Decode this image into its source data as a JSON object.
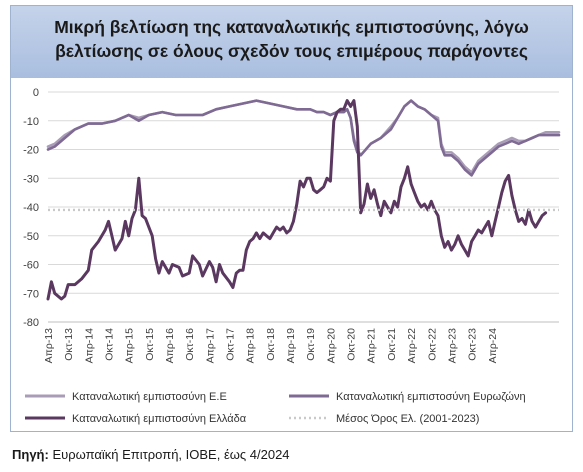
{
  "title": "Μικρή βελτίωση της καταναλωτικής εμπιστοσύνης, λόγω βελτίωσης σε όλους σχεδόν τους επιμέρους παράγοντες",
  "source_label": "Πηγή:",
  "source_text": " Ευρωπαϊκή Επιτροπή, ΙΟΒΕ, έως 4/2024",
  "colors": {
    "eu": "#a99cb6",
    "ez": "#7f6a93",
    "gr": "#5a3860",
    "avg": "#c9c9c9",
    "grid": "#d9d9d9",
    "axis": "#bfbfbf"
  },
  "chart_data": {
    "type": "line",
    "x_tick_labels": [
      "Απρ-13",
      "Οκτ-13",
      "Απρ-14",
      "Οκτ-14",
      "Απρ-15",
      "Οκτ-15",
      "Απρ-16",
      "Οκτ-16",
      "Απρ-17",
      "Οκτ-17",
      "Απρ-18",
      "Οκτ-18",
      "Απρ-19",
      "Οκτ-19",
      "Απρ-20",
      "Οκτ-20",
      "Απρ-21",
      "Οκτ-21",
      "Απρ-22",
      "Οκτ-22",
      "Απρ-23",
      "Οκτ-23",
      "Απρ-24"
    ],
    "ylim": [
      -80,
      0
    ],
    "y_ticks": [
      0,
      -10,
      -20,
      -30,
      -40,
      -50,
      -60,
      -70,
      -80
    ],
    "grid": "horizontal",
    "legend_position": "bottom",
    "series": [
      {
        "name": "Καταναλωτική εμπιστοσύνη Ε.Ε",
        "color_key": "eu",
        "style": "solid",
        "values": [
          {
            "x": 0,
            "y": -19
          },
          {
            "x": 2,
            "y": -18
          },
          {
            "x": 5,
            "y": -15
          },
          {
            "x": 8,
            "y": -13
          },
          {
            "x": 12,
            "y": -11
          },
          {
            "x": 16,
            "y": -11
          },
          {
            "x": 20,
            "y": -10
          },
          {
            "x": 24,
            "y": -8
          },
          {
            "x": 27,
            "y": -9
          },
          {
            "x": 30,
            "y": -8
          },
          {
            "x": 34,
            "y": -7
          },
          {
            "x": 38,
            "y": -8
          },
          {
            "x": 42,
            "y": -8
          },
          {
            "x": 46,
            "y": -8
          },
          {
            "x": 50,
            "y": -6
          },
          {
            "x": 54,
            "y": -5
          },
          {
            "x": 58,
            "y": -4
          },
          {
            "x": 62,
            "y": -3
          },
          {
            "x": 66,
            "y": -4
          },
          {
            "x": 70,
            "y": -5
          },
          {
            "x": 74,
            "y": -6
          },
          {
            "x": 78,
            "y": -6
          },
          {
            "x": 80,
            "y": -7
          },
          {
            "x": 82,
            "y": -7
          },
          {
            "x": 84,
            "y": -8
          },
          {
            "x": 86,
            "y": -7
          },
          {
            "x": 88,
            "y": -7
          },
          {
            "x": 89,
            "y": -6
          },
          {
            "x": 90,
            "y": -9
          },
          {
            "x": 91,
            "y": -16
          },
          {
            "x": 92,
            "y": -20
          },
          {
            "x": 93,
            "y": -22
          },
          {
            "x": 96,
            "y": -18
          },
          {
            "x": 99,
            "y": -16
          },
          {
            "x": 102,
            "y": -12
          },
          {
            "x": 104,
            "y": -9
          },
          {
            "x": 106,
            "y": -5
          },
          {
            "x": 108,
            "y": -3
          },
          {
            "x": 110,
            "y": -5
          },
          {
            "x": 112,
            "y": -6
          },
          {
            "x": 114,
            "y": -8
          },
          {
            "x": 116,
            "y": -9
          },
          {
            "x": 117,
            "y": -18
          },
          {
            "x": 118,
            "y": -21
          },
          {
            "x": 120,
            "y": -21
          },
          {
            "x": 122,
            "y": -23
          },
          {
            "x": 124,
            "y": -26
          },
          {
            "x": 126,
            "y": -28
          },
          {
            "x": 128,
            "y": -24
          },
          {
            "x": 130,
            "y": -22
          },
          {
            "x": 132,
            "y": -20
          },
          {
            "x": 134,
            "y": -18
          },
          {
            "x": 136,
            "y": -17
          },
          {
            "x": 138,
            "y": -16
          },
          {
            "x": 140,
            "y": -17
          },
          {
            "x": 142,
            "y": -17
          },
          {
            "x": 144,
            "y": -16
          },
          {
            "x": 146,
            "y": -15
          },
          {
            "x": 148,
            "y": -14
          },
          {
            "x": 150,
            "y": -14
          },
          {
            "x": 152,
            "y": -14
          }
        ]
      },
      {
        "name": "Καταναλωτική εμπιστοσύνη Ευρωζώνη",
        "color_key": "ez",
        "style": "solid",
        "values": [
          {
            "x": 0,
            "y": -20
          },
          {
            "x": 2,
            "y": -19
          },
          {
            "x": 5,
            "y": -16
          },
          {
            "x": 8,
            "y": -13
          },
          {
            "x": 12,
            "y": -11
          },
          {
            "x": 16,
            "y": -11
          },
          {
            "x": 20,
            "y": -10
          },
          {
            "x": 24,
            "y": -8
          },
          {
            "x": 27,
            "y": -10
          },
          {
            "x": 30,
            "y": -8
          },
          {
            "x": 34,
            "y": -7
          },
          {
            "x": 38,
            "y": -8
          },
          {
            "x": 42,
            "y": -8
          },
          {
            "x": 46,
            "y": -8
          },
          {
            "x": 50,
            "y": -6
          },
          {
            "x": 54,
            "y": -5
          },
          {
            "x": 58,
            "y": -4
          },
          {
            "x": 62,
            "y": -3
          },
          {
            "x": 66,
            "y": -4
          },
          {
            "x": 70,
            "y": -5
          },
          {
            "x": 74,
            "y": -6
          },
          {
            "x": 78,
            "y": -6
          },
          {
            "x": 80,
            "y": -7
          },
          {
            "x": 82,
            "y": -7
          },
          {
            "x": 84,
            "y": -8
          },
          {
            "x": 86,
            "y": -7
          },
          {
            "x": 88,
            "y": -7
          },
          {
            "x": 89,
            "y": -6
          },
          {
            "x": 90,
            "y": -9
          },
          {
            "x": 91,
            "y": -17
          },
          {
            "x": 92,
            "y": -21
          },
          {
            "x": 93,
            "y": -22
          },
          {
            "x": 96,
            "y": -18
          },
          {
            "x": 99,
            "y": -16
          },
          {
            "x": 102,
            "y": -13
          },
          {
            "x": 104,
            "y": -9
          },
          {
            "x": 106,
            "y": -5
          },
          {
            "x": 108,
            "y": -3
          },
          {
            "x": 110,
            "y": -5
          },
          {
            "x": 112,
            "y": -6
          },
          {
            "x": 114,
            "y": -8
          },
          {
            "x": 116,
            "y": -10
          },
          {
            "x": 117,
            "y": -19
          },
          {
            "x": 118,
            "y": -22
          },
          {
            "x": 120,
            "y": -22
          },
          {
            "x": 122,
            "y": -24
          },
          {
            "x": 124,
            "y": -27
          },
          {
            "x": 126,
            "y": -29
          },
          {
            "x": 128,
            "y": -25
          },
          {
            "x": 130,
            "y": -23
          },
          {
            "x": 132,
            "y": -21
          },
          {
            "x": 134,
            "y": -19
          },
          {
            "x": 136,
            "y": -18
          },
          {
            "x": 138,
            "y": -17
          },
          {
            "x": 140,
            "y": -18
          },
          {
            "x": 142,
            "y": -17
          },
          {
            "x": 144,
            "y": -16
          },
          {
            "x": 146,
            "y": -15
          },
          {
            "x": 148,
            "y": -15
          },
          {
            "x": 150,
            "y": -15
          },
          {
            "x": 152,
            "y": -15
          }
        ]
      },
      {
        "name": "Καταναλωτική εμπιστοσύνη Ελλάδα",
        "color_key": "gr",
        "style": "solid",
        "values": [
          {
            "x": 0,
            "y": -72
          },
          {
            "x": 1,
            "y": -66
          },
          {
            "x": 2,
            "y": -70
          },
          {
            "x": 4,
            "y": -72
          },
          {
            "x": 5,
            "y": -71
          },
          {
            "x": 6,
            "y": -67
          },
          {
            "x": 8,
            "y": -67
          },
          {
            "x": 10,
            "y": -65
          },
          {
            "x": 12,
            "y": -62
          },
          {
            "x": 13,
            "y": -55
          },
          {
            "x": 15,
            "y": -52
          },
          {
            "x": 17,
            "y": -48
          },
          {
            "x": 18,
            "y": -45
          },
          {
            "x": 19,
            "y": -50
          },
          {
            "x": 20,
            "y": -55
          },
          {
            "x": 22,
            "y": -51
          },
          {
            "x": 23,
            "y": -45
          },
          {
            "x": 24,
            "y": -50
          },
          {
            "x": 25,
            "y": -44
          },
          {
            "x": 26,
            "y": -41
          },
          {
            "x": 27,
            "y": -30
          },
          {
            "x": 28,
            "y": -43
          },
          {
            "x": 29,
            "y": -44
          },
          {
            "x": 31,
            "y": -50
          },
          {
            "x": 32,
            "y": -58
          },
          {
            "x": 33,
            "y": -63
          },
          {
            "x": 34,
            "y": -59
          },
          {
            "x": 36,
            "y": -63
          },
          {
            "x": 37,
            "y": -60
          },
          {
            "x": 39,
            "y": -61
          },
          {
            "x": 40,
            "y": -64
          },
          {
            "x": 42,
            "y": -63
          },
          {
            "x": 43,
            "y": -57
          },
          {
            "x": 45,
            "y": -60
          },
          {
            "x": 46,
            "y": -64
          },
          {
            "x": 48,
            "y": -59
          },
          {
            "x": 49,
            "y": -61
          },
          {
            "x": 50,
            "y": -66
          },
          {
            "x": 51,
            "y": -60
          },
          {
            "x": 52,
            "y": -63
          },
          {
            "x": 54,
            "y": -66
          },
          {
            "x": 55,
            "y": -68
          },
          {
            "x": 56,
            "y": -63
          },
          {
            "x": 57,
            "y": -62
          },
          {
            "x": 58,
            "y": -62
          },
          {
            "x": 59,
            "y": -55
          },
          {
            "x": 60,
            "y": -52
          },
          {
            "x": 61,
            "y": -51
          },
          {
            "x": 62,
            "y": -49
          },
          {
            "x": 63,
            "y": -51
          },
          {
            "x": 64,
            "y": -49
          },
          {
            "x": 65,
            "y": -50
          },
          {
            "x": 66,
            "y": -51
          },
          {
            "x": 67,
            "y": -49
          },
          {
            "x": 68,
            "y": -47
          },
          {
            "x": 69,
            "y": -48
          },
          {
            "x": 70,
            "y": -47
          },
          {
            "x": 71,
            "y": -49
          },
          {
            "x": 72,
            "y": -48
          },
          {
            "x": 73,
            "y": -45
          },
          {
            "x": 74,
            "y": -39
          },
          {
            "x": 75,
            "y": -31
          },
          {
            "x": 76,
            "y": -33
          },
          {
            "x": 77,
            "y": -30
          },
          {
            "x": 78,
            "y": -30
          },
          {
            "x": 79,
            "y": -34
          },
          {
            "x": 80,
            "y": -35
          },
          {
            "x": 81,
            "y": -34
          },
          {
            "x": 82,
            "y": -33
          },
          {
            "x": 83,
            "y": -30
          },
          {
            "x": 84,
            "y": -31
          },
          {
            "x": 85,
            "y": -10
          },
          {
            "x": 86,
            "y": -7
          },
          {
            "x": 87,
            "y": -6
          },
          {
            "x": 88,
            "y": -6
          },
          {
            "x": 89,
            "y": -3
          },
          {
            "x": 90,
            "y": -5
          },
          {
            "x": 91,
            "y": -3
          },
          {
            "x": 92,
            "y": -12
          },
          {
            "x": 93,
            "y": -42
          },
          {
            "x": 94,
            "y": -39
          },
          {
            "x": 95,
            "y": -32
          },
          {
            "x": 96,
            "y": -37
          },
          {
            "x": 97,
            "y": -34
          },
          {
            "x": 98,
            "y": -39
          },
          {
            "x": 99,
            "y": -43
          },
          {
            "x": 100,
            "y": -38
          },
          {
            "x": 101,
            "y": -40
          },
          {
            "x": 102,
            "y": -42
          },
          {
            "x": 103,
            "y": -38
          },
          {
            "x": 104,
            "y": -40
          },
          {
            "x": 105,
            "y": -33
          },
          {
            "x": 106,
            "y": -30
          },
          {
            "x": 107,
            "y": -26
          },
          {
            "x": 108,
            "y": -32
          },
          {
            "x": 109,
            "y": -35
          },
          {
            "x": 110,
            "y": -38
          },
          {
            "x": 111,
            "y": -40
          },
          {
            "x": 112,
            "y": -39
          },
          {
            "x": 113,
            "y": -41
          },
          {
            "x": 114,
            "y": -38
          },
          {
            "x": 115,
            "y": -41
          },
          {
            "x": 116,
            "y": -43
          },
          {
            "x": 117,
            "y": -50
          },
          {
            "x": 118,
            "y": -54
          },
          {
            "x": 119,
            "y": -52
          },
          {
            "x": 120,
            "y": -55
          },
          {
            "x": 121,
            "y": -53
          },
          {
            "x": 122,
            "y": -50
          },
          {
            "x": 123,
            "y": -53
          },
          {
            "x": 124,
            "y": -55
          },
          {
            "x": 125,
            "y": -57
          },
          {
            "x": 126,
            "y": -52
          },
          {
            "x": 127,
            "y": -50
          },
          {
            "x": 128,
            "y": -48
          },
          {
            "x": 129,
            "y": -49
          },
          {
            "x": 130,
            "y": -47
          },
          {
            "x": 131,
            "y": -45
          },
          {
            "x": 132,
            "y": -50
          },
          {
            "x": 133,
            "y": -45
          },
          {
            "x": 134,
            "y": -40
          },
          {
            "x": 135,
            "y": -35
          },
          {
            "x": 136,
            "y": -31
          },
          {
            "x": 137,
            "y": -29
          },
          {
            "x": 138,
            "y": -36
          },
          {
            "x": 139,
            "y": -41
          },
          {
            "x": 140,
            "y": -45
          },
          {
            "x": 141,
            "y": -44
          },
          {
            "x": 142,
            "y": -46
          },
          {
            "x": 143,
            "y": -41
          },
          {
            "x": 144,
            "y": -45
          },
          {
            "x": 145,
            "y": -47
          },
          {
            "x": 146,
            "y": -45
          },
          {
            "x": 147,
            "y": -43
          },
          {
            "x": 148,
            "y": -42
          }
        ]
      },
      {
        "name": "Μέσος Όρος Ελ. (2001-2023)",
        "color_key": "avg",
        "style": "dotted",
        "values": [
          {
            "x": 0,
            "y": -41
          },
          {
            "x": 152,
            "y": -41
          }
        ]
      }
    ]
  }
}
